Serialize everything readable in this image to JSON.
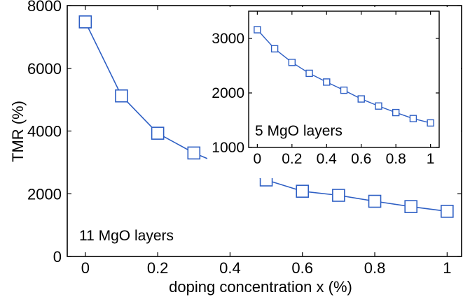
{
  "chart_data": [
    {
      "type": "line",
      "xlabel": "doping concentration x (%)",
      "ylabel": "TMR (%)",
      "xlim": [
        -0.05,
        1.04
      ],
      "ylim": [
        0,
        8000
      ],
      "xticks": [
        "0",
        "0.2",
        "0.4",
        "0.6",
        "0.8",
        "1"
      ],
      "yticks": [
        "0",
        "2000",
        "4000",
        "6000",
        "8000"
      ],
      "grid": false,
      "marker": "square",
      "color": "#2e5fc4",
      "annotation": "11 MgO layers",
      "series": [
        {
          "x": [
            0,
            0.1,
            0.2,
            0.3,
            0.4,
            0.5,
            0.6,
            0.7,
            0.8,
            0.9,
            1.0
          ],
          "y": [
            7480,
            5120,
            3930,
            3300,
            2820,
            2440,
            2080,
            1950,
            1760,
            1590,
            1440
          ]
        }
      ]
    },
    {
      "type": "line",
      "inset": true,
      "xlim": [
        -0.05,
        1.05
      ],
      "ylim": [
        1000,
        3500
      ],
      "xticks": [
        "0",
        "0.2",
        "0.4",
        "0.6",
        "0.8",
        "1"
      ],
      "yticks": [
        "1000",
        "2000",
        "3000"
      ],
      "grid": false,
      "marker": "square",
      "color": "#2e5fc4",
      "annotation": "5 MgO layers",
      "series": [
        {
          "x": [
            0,
            0.1,
            0.2,
            0.3,
            0.4,
            0.5,
            0.6,
            0.7,
            0.8,
            0.9,
            1.0
          ],
          "y": [
            3160,
            2810,
            2560,
            2360,
            2200,
            2050,
            1890,
            1760,
            1640,
            1530,
            1450
          ]
        }
      ]
    }
  ]
}
